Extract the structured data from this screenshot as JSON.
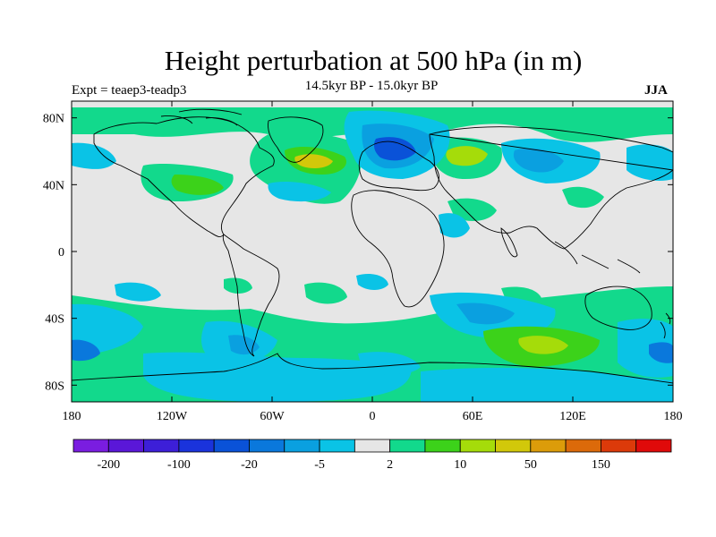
{
  "title": "Height perturbation at 500 hPa (in m)",
  "left_label": "Expt = teaep3-teadp3",
  "center_label": "14.5kyr BP - 15.0kyr BP",
  "right_label": "JJA",
  "map": {
    "lon_range": [
      -180,
      180
    ],
    "lat_range": [
      -90,
      90
    ],
    "x_ticks": [
      {
        "value": -180,
        "label": "180"
      },
      {
        "value": -120,
        "label": "120W"
      },
      {
        "value": -60,
        "label": "60W"
      },
      {
        "value": 0,
        "label": "0"
      },
      {
        "value": 60,
        "label": "60E"
      },
      {
        "value": 120,
        "label": "120E"
      },
      {
        "value": 180,
        "label": "180"
      }
    ],
    "y_ticks": [
      {
        "value": 80,
        "label": "80N"
      },
      {
        "value": 40,
        "label": "40N"
      },
      {
        "value": 0,
        "label": "0"
      },
      {
        "value": -40,
        "label": "40S"
      },
      {
        "value": -80,
        "label": "80S"
      }
    ],
    "background_color": "#e6e6e6",
    "coastline_color": "#000000"
  },
  "colorbar": {
    "colors": [
      "#7a1de0",
      "#5a17d8",
      "#3d1fd8",
      "#1a33dc",
      "#0a52d8",
      "#0a78dc",
      "#0aa0e0",
      "#0ac3e6",
      "#e6e6e6",
      "#12d98c",
      "#3cd21a",
      "#a5dc0a",
      "#d2c80a",
      "#dc9c0a",
      "#dc6a0a",
      "#dc3a0a",
      "#e00a0a"
    ],
    "tick_labels": [
      {
        "index": 1,
        "label": "-200"
      },
      {
        "index": 3,
        "label": "-100"
      },
      {
        "index": 5,
        "label": "-20"
      },
      {
        "index": 7,
        "label": "-5"
      },
      {
        "index": 9,
        "label": "2"
      },
      {
        "index": 11,
        "label": "10"
      },
      {
        "index": 13,
        "label": "50"
      },
      {
        "index": 15,
        "label": "150"
      }
    ]
  }
}
